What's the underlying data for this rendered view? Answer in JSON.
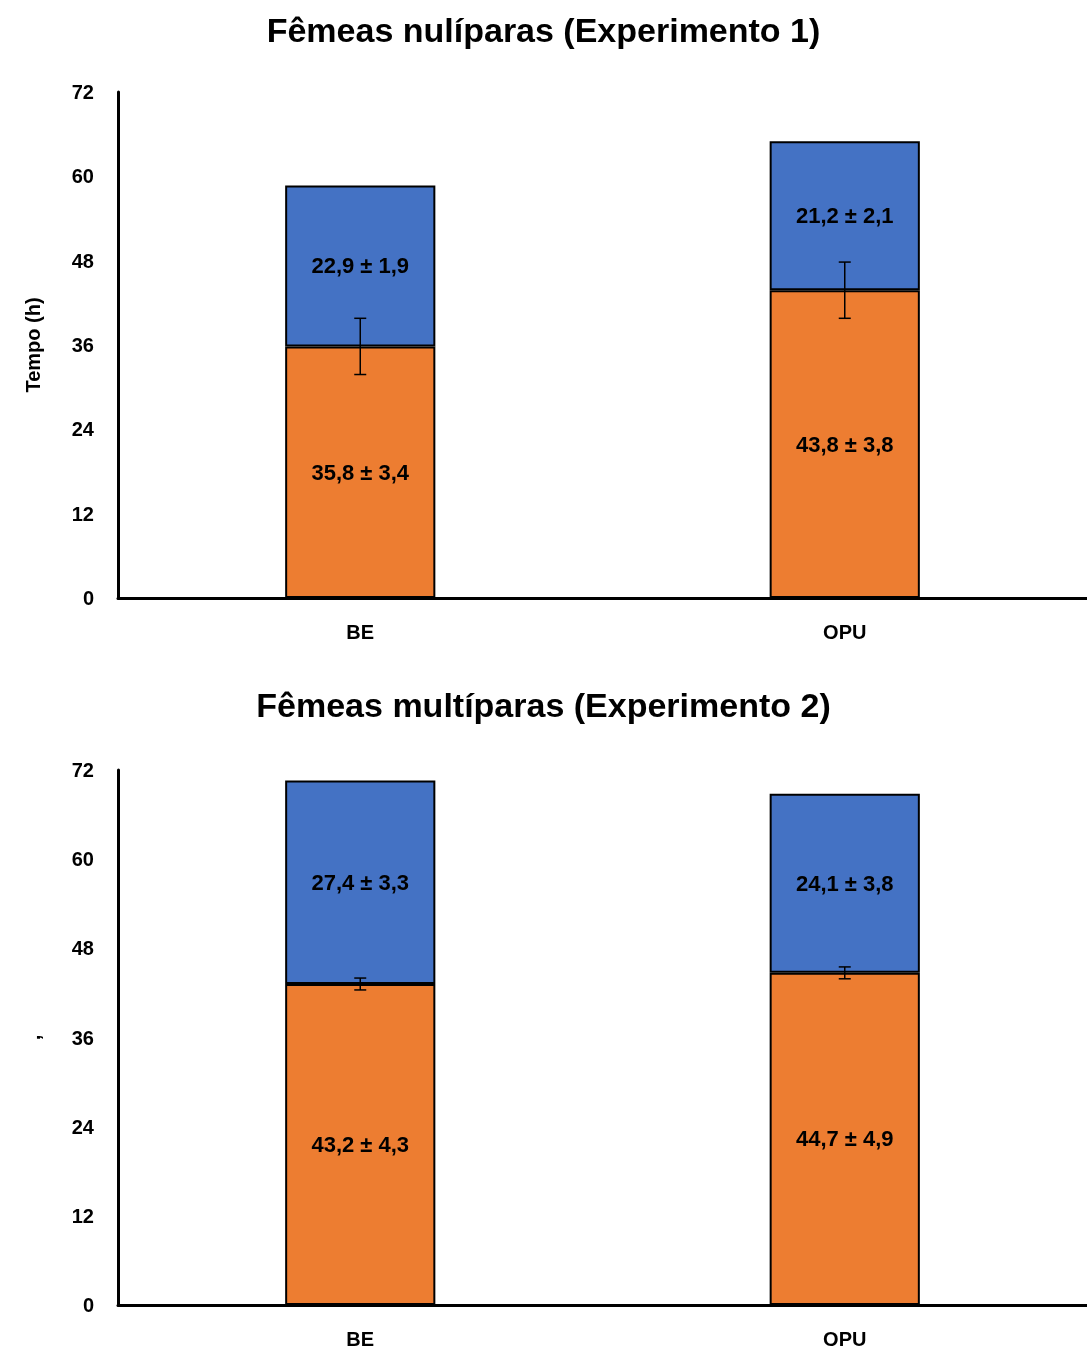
{
  "chart_data": [
    {
      "type": "bar",
      "title": "Fêmeas nulíparas (Experimento 1)",
      "ylabel": "Tempo (h)",
      "categories": [
        "BE",
        "OPU"
      ],
      "stacked": true,
      "ylim": [
        0,
        72
      ],
      "yticks": [
        0,
        12,
        24,
        36,
        48,
        60,
        72
      ],
      "grid": false,
      "series": [
        {
          "color": "#ed7d31",
          "values": [
            35.8,
            43.8
          ],
          "errors": [
            4,
            4
          ],
          "value_labels": [
            "35,8 ± 3,4",
            "43,8 ± 3,8"
          ]
        },
        {
          "color": "#4472c4",
          "values": [
            22.9,
            21.2
          ],
          "value_labels": [
            "22,9 ± 1,9",
            "21,2 ± 2,1"
          ]
        }
      ]
    },
    {
      "type": "bar",
      "title": "Fêmeas multíparas (Experimento 2)",
      "ylabel": ",",
      "categories": [
        "BE",
        "OPU"
      ],
      "stacked": true,
      "ylim": [
        0,
        72
      ],
      "yticks": [
        0,
        12,
        24,
        36,
        48,
        60,
        72
      ],
      "grid": false,
      "series": [
        {
          "color": "#ed7d31",
          "values": [
            43.2,
            44.7
          ],
          "errors": [
            0.8,
            0.8
          ],
          "value_labels": [
            "43,2 ± 4,3",
            "44,7 ± 4,9"
          ]
        },
        {
          "color": "#4472c4",
          "values": [
            27.4,
            24.1
          ],
          "value_labels": [
            "27,4 ± 3,3",
            "24,1 ± 3,8"
          ]
        }
      ]
    }
  ]
}
